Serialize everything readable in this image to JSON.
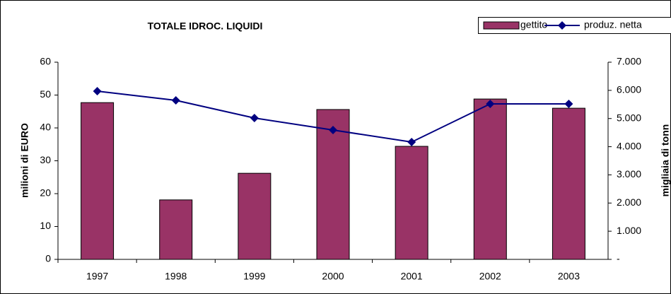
{
  "chart_data": {
    "type": "bar_line",
    "title": "TOTALE  IDROC. LIQUIDI",
    "ylabel": "milioni di EURO",
    "y2label": "migliaia di tonn",
    "categories": [
      "1997",
      "1998",
      "1999",
      "2000",
      "2001",
      "2002",
      "2003"
    ],
    "series": [
      {
        "name": "gettito",
        "type": "bar",
        "color": "#993366",
        "values": [
          47.7,
          18.1,
          26.2,
          45.6,
          34.4,
          48.8,
          46.0
        ]
      },
      {
        "name": "produz. netta",
        "type": "line",
        "color": "#000080",
        "axis": "y2",
        "values": [
          5970,
          5645,
          5018,
          4591,
          4165,
          5520,
          5520
        ]
      }
    ],
    "ylim": [
      0,
      60
    ],
    "yticks": [
      0,
      10,
      20,
      30,
      40,
      50,
      60
    ],
    "y2lim": [
      0,
      7000
    ],
    "y2ticks": [
      {
        "value": 0,
        "label": "-"
      },
      {
        "value": 1000,
        "label": "1.000"
      },
      {
        "value": 2000,
        "label": "2.000"
      },
      {
        "value": 3000,
        "label": "3.000"
      },
      {
        "value": 4000,
        "label": "4.000"
      },
      {
        "value": 5000,
        "label": "5.000"
      },
      {
        "value": 6000,
        "label": "6.000"
      },
      {
        "value": 7000,
        "label": "7.000"
      }
    ],
    "grid": false
  }
}
